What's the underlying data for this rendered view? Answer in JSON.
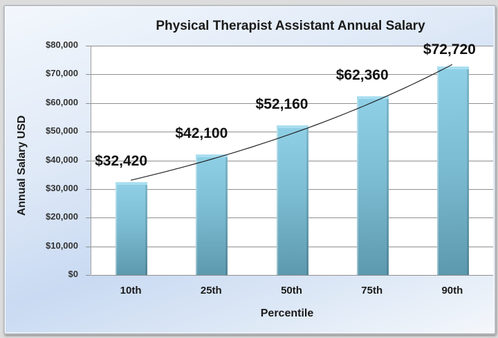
{
  "chart_data": {
    "type": "bar",
    "title": "Physical Therapist Assistant Annual Salary",
    "xlabel": "Percentile",
    "ylabel": "Annual Salary USD",
    "categories": [
      "10th",
      "25th",
      "50th",
      "75th",
      "90th"
    ],
    "values": [
      32420,
      42100,
      52160,
      62360,
      72720
    ],
    "data_labels": [
      "$32,420",
      "$42,100",
      "$52,160",
      "$62,360",
      "$72,720"
    ],
    "ylim": [
      0,
      80000
    ],
    "yticks": [
      "$0",
      "$10,000",
      "$20,000",
      "$30,000",
      "$40,000",
      "$50,000",
      "$60,000",
      "$70,000",
      "$80,000"
    ],
    "grid": true,
    "legend": "none",
    "trendline": "exponential",
    "bar_color": "#7dbdd3"
  }
}
